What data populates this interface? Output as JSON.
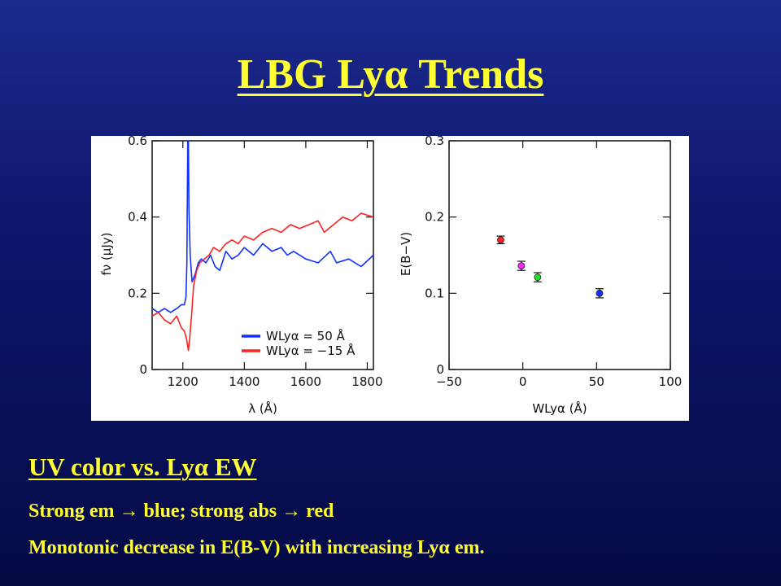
{
  "slide": {
    "title": "LBG Lyα Trends",
    "heading": "UV color vs. Lyα EW",
    "bullet1": "Strong em → blue; strong abs → red",
    "bullet2": "Monotonic decrease in E(B-V) with increasing Lyα em."
  },
  "colors": {
    "background": "#0d1870",
    "text": "#ffff33",
    "blue_series": "#1030ff",
    "red_series": "#ff2020",
    "magenta_point": "#ff20ff",
    "green_point": "#20e020"
  },
  "chart_data": [
    {
      "type": "line",
      "xlabel": "λ (Å)",
      "ylabel": "fν (μJy)",
      "xlim": [
        1100,
        1820
      ],
      "ylim": [
        0,
        0.6
      ],
      "xticks": [
        "1200",
        "1400",
        "1600",
        "1800"
      ],
      "yticks": [
        "0",
        "0.2",
        "0.4",
        "0.6"
      ],
      "legend_position": "bottom-right",
      "series": [
        {
          "name": "WLyα = 50 Å",
          "color": "#1030ff",
          "x": [
            1100,
            1120,
            1140,
            1160,
            1180,
            1195,
            1205,
            1210,
            1213,
            1216,
            1218,
            1220,
            1224,
            1230,
            1240,
            1250,
            1260,
            1275,
            1290,
            1305,
            1320,
            1340,
            1360,
            1380,
            1400,
            1430,
            1460,
            1490,
            1520,
            1540,
            1560,
            1600,
            1640,
            1680,
            1700,
            1740,
            1780,
            1820
          ],
          "y": [
            0.16,
            0.15,
            0.16,
            0.15,
            0.16,
            0.17,
            0.17,
            0.19,
            0.28,
            0.6,
            0.6,
            0.42,
            0.3,
            0.23,
            0.25,
            0.28,
            0.29,
            0.28,
            0.3,
            0.27,
            0.26,
            0.31,
            0.29,
            0.3,
            0.32,
            0.3,
            0.33,
            0.31,
            0.32,
            0.3,
            0.31,
            0.29,
            0.28,
            0.31,
            0.28,
            0.29,
            0.27,
            0.3
          ]
        },
        {
          "name": "WLyα = −15 Å",
          "color": "#ff2020",
          "x": [
            1100,
            1120,
            1140,
            1160,
            1180,
            1195,
            1205,
            1212,
            1218,
            1222,
            1228,
            1235,
            1245,
            1255,
            1270,
            1285,
            1300,
            1320,
            1340,
            1360,
            1380,
            1400,
            1430,
            1460,
            1490,
            1520,
            1550,
            1580,
            1610,
            1640,
            1660,
            1690,
            1720,
            1750,
            1780,
            1820
          ],
          "y": [
            0.14,
            0.15,
            0.13,
            0.12,
            0.14,
            0.11,
            0.1,
            0.08,
            0.05,
            0.08,
            0.14,
            0.22,
            0.26,
            0.28,
            0.29,
            0.3,
            0.32,
            0.31,
            0.33,
            0.34,
            0.33,
            0.35,
            0.34,
            0.36,
            0.37,
            0.36,
            0.38,
            0.37,
            0.38,
            0.39,
            0.36,
            0.38,
            0.4,
            0.39,
            0.41,
            0.4
          ]
        }
      ]
    },
    {
      "type": "scatter",
      "xlabel": "WLyα (Å)",
      "ylabel": "E(B−V)",
      "xlim": [
        -50,
        100
      ],
      "ylim": [
        0,
        0.3
      ],
      "xticks": [
        "−50",
        "0",
        "50",
        "100"
      ],
      "yticks": [
        "0",
        "0.1",
        "0.2",
        "0.3"
      ],
      "points": [
        {
          "x": -15,
          "y": 0.17,
          "err": 0.005,
          "color": "#ff2020"
        },
        {
          "x": -1,
          "y": 0.136,
          "err": 0.006,
          "color": "#ff20ff"
        },
        {
          "x": 10,
          "y": 0.121,
          "err": 0.006,
          "color": "#20e020"
        },
        {
          "x": 52,
          "y": 0.1,
          "err": 0.006,
          "color": "#1030ff"
        }
      ]
    }
  ]
}
